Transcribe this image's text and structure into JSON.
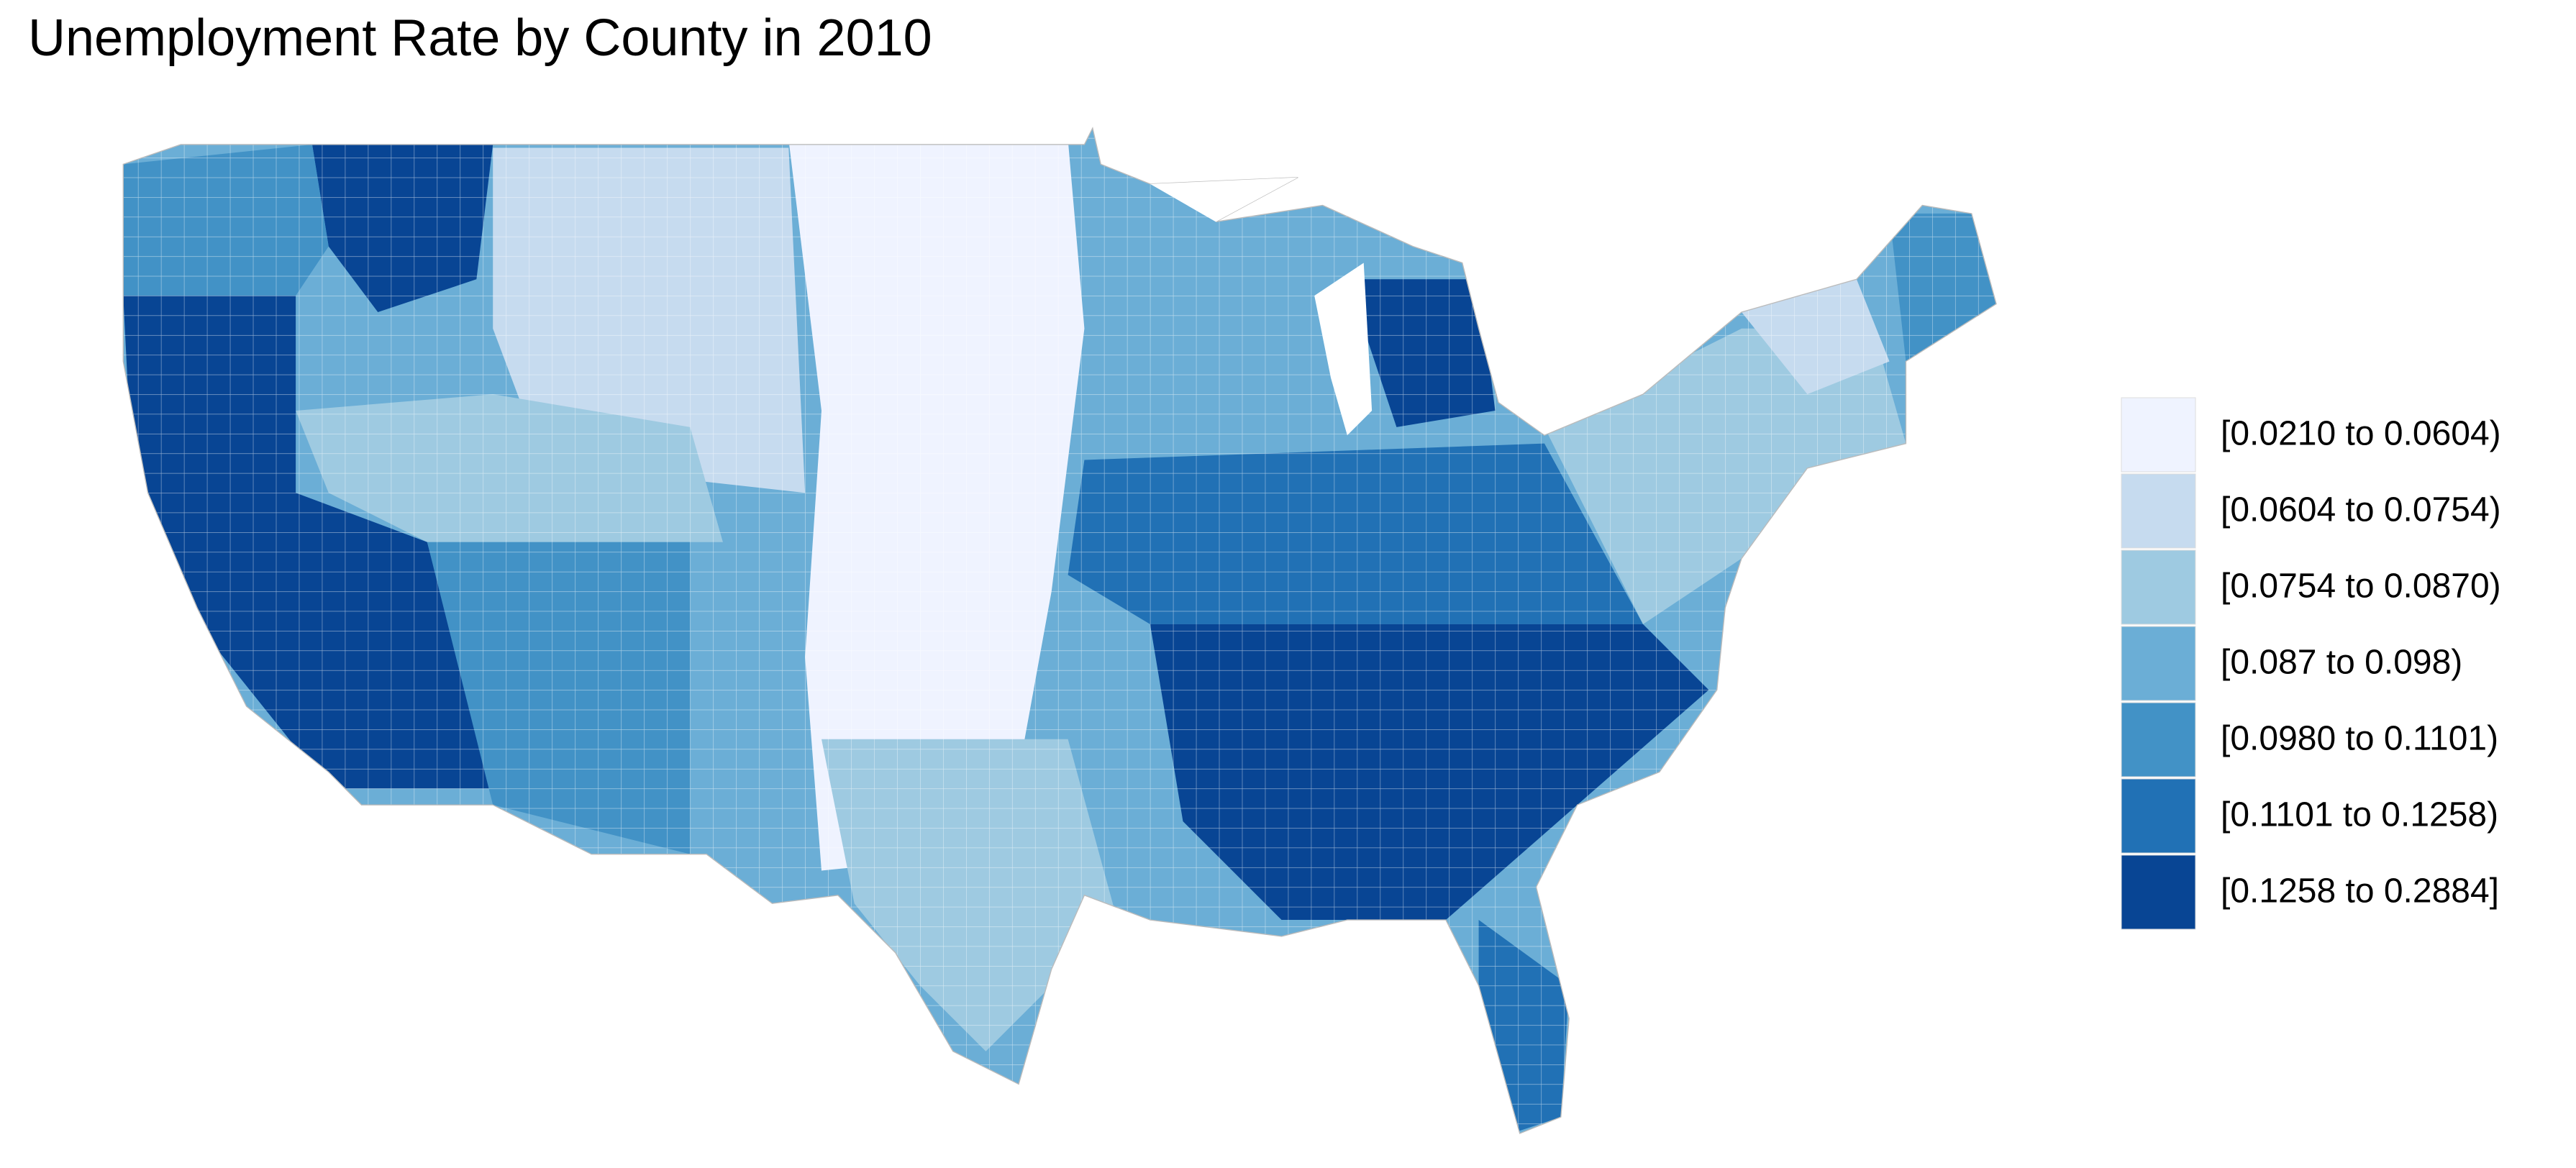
{
  "title": "Unemployment Rate by County in 2010",
  "legend": {
    "items": [
      {
        "label": "[0.0210 to 0.0604)",
        "color": "#eff3ff"
      },
      {
        "label": "[0.0604 to 0.0754)",
        "color": "#c6dbef"
      },
      {
        "label": "[0.0754 to 0.0870)",
        "color": "#9ecae1"
      },
      {
        "label": "[0.087 to 0.098)",
        "color": "#6baed6"
      },
      {
        "label": "[0.0980 to 0.1101)",
        "color": "#4292c6"
      },
      {
        "label": "[0.1101 to 0.1258)",
        "color": "#2171b5"
      },
      {
        "label": "[0.1258 to 0.2884]",
        "color": "#084594"
      }
    ]
  }
}
